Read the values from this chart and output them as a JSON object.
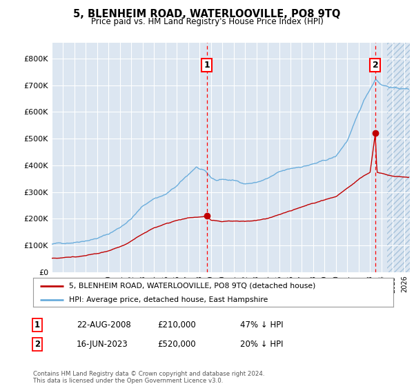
{
  "title": "5, BLENHEIM ROAD, WATERLOOVILLE, PO8 9TQ",
  "subtitle": "Price paid vs. HM Land Registry's House Price Index (HPI)",
  "xlim_start": 1995.0,
  "xlim_end": 2026.5,
  "ylim": [
    0,
    860000
  ],
  "yticks": [
    0,
    100000,
    200000,
    300000,
    400000,
    500000,
    600000,
    700000,
    800000
  ],
  "ytick_labels": [
    "£0",
    "£100K",
    "£200K",
    "£300K",
    "£400K",
    "£500K",
    "£600K",
    "£700K",
    "£800K"
  ],
  "hpi_color": "#6aaddc",
  "price_color": "#c00000",
  "transaction1_date": 2008.64,
  "transaction1_price": 210000,
  "transaction2_date": 2023.46,
  "transaction2_price": 520000,
  "legend_line1": "5, BLENHEIM ROAD, WATERLOOVILLE, PO8 9TQ (detached house)",
  "legend_line2": "HPI: Average price, detached house, East Hampshire",
  "table_row1": [
    "1",
    "22-AUG-2008",
    "£210,000",
    "47% ↓ HPI"
  ],
  "table_row2": [
    "2",
    "16-JUN-2023",
    "£520,000",
    "20% ↓ HPI"
  ],
  "footnote": "Contains HM Land Registry data © Crown copyright and database right 2024.\nThis data is licensed under the Open Government Licence v3.0.",
  "plot_bg_color": "#dce6f1",
  "grid_color": "#ffffff",
  "hatch_start": 2024.5,
  "hpi_knots": {
    "1995.0": 105000,
    "1996.0": 108000,
    "1997.0": 115000,
    "1998.0": 125000,
    "1999.0": 135000,
    "2000.0": 150000,
    "2001.0": 175000,
    "2002.0": 210000,
    "2003.0": 255000,
    "2004.0": 285000,
    "2005.0": 300000,
    "2006.0": 330000,
    "2007.0": 370000,
    "2007.7": 400000,
    "2008.5": 380000,
    "2009.0": 355000,
    "2009.5": 345000,
    "2010.0": 350000,
    "2011.0": 345000,
    "2012.0": 335000,
    "2013.0": 340000,
    "2014.0": 355000,
    "2015.0": 375000,
    "2016.0": 385000,
    "2017.0": 395000,
    "2018.0": 405000,
    "2019.0": 415000,
    "2020.0": 430000,
    "2021.0": 490000,
    "2021.5": 540000,
    "2022.0": 590000,
    "2022.5": 640000,
    "2023.0": 680000,
    "2023.5": 720000,
    "2024.0": 700000,
    "2024.5": 695000,
    "2025.0": 690000,
    "2026.0": 685000
  },
  "price_knots": {
    "1995.0": 52000,
    "1996.0": 55000,
    "1997.0": 59000,
    "1998.0": 64000,
    "1999.0": 70000,
    "2000.0": 80000,
    "2001.0": 95000,
    "2002.0": 115000,
    "2003.0": 140000,
    "2004.0": 165000,
    "2005.0": 180000,
    "2006.0": 195000,
    "2007.0": 205000,
    "2008.0": 208000,
    "2008.64": 210000,
    "2009.0": 195000,
    "2010.0": 190000,
    "2011.0": 192000,
    "2012.0": 190000,
    "2013.0": 193000,
    "2014.0": 200000,
    "2015.0": 215000,
    "2016.0": 230000,
    "2017.0": 245000,
    "2018.0": 258000,
    "2019.0": 270000,
    "2020.0": 285000,
    "2021.0": 315000,
    "2022.0": 350000,
    "2023.0": 375000,
    "2023.46": 520000,
    "2023.6": 375000,
    "2024.0": 370000,
    "2025.0": 360000,
    "2026.0": 355000
  }
}
